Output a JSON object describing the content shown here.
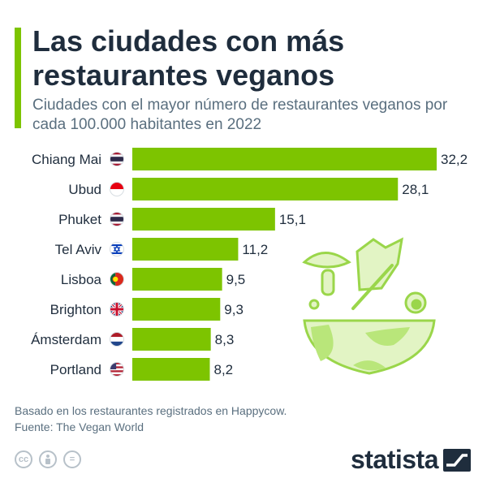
{
  "header": {
    "title": "Las ciudades con más restaurantes veganos",
    "subtitle": "Ciudades con el mayor número de restaurantes veganos por cada 100.000 habitantes en 2022"
  },
  "colors": {
    "accent": "#7dc400",
    "bar": "#7dc400",
    "text": "#1f2d3d",
    "muted": "#5a6f7f"
  },
  "chart_data": {
    "type": "bar",
    "orientation": "horizontal",
    "title": "Las ciudades con más restaurantes veganos",
    "subtitle": "Ciudades con el mayor número de restaurantes veganos por cada 100.000 habitantes en 2022",
    "categories": [
      "Chiang Mai",
      "Ubud",
      "Phuket",
      "Tel Aviv",
      "Lisboa",
      "Brighton",
      "Ámsterdam",
      "Portland"
    ],
    "values": [
      32.2,
      28.1,
      15.1,
      11.2,
      9.5,
      9.3,
      8.3,
      8.2
    ],
    "value_labels": [
      "32,2",
      "28,1",
      "15,1",
      "11,2",
      "9,5",
      "9,3",
      "8,3",
      "8,2"
    ],
    "flags": [
      "thailand-flag",
      "indonesia-flag",
      "thailand-flag",
      "israel-flag",
      "portugal-flag",
      "uk-flag",
      "netherlands-flag",
      "usa-flag"
    ],
    "xlim": [
      0,
      32.2
    ],
    "grid": false,
    "legend": "none"
  },
  "footer": {
    "note": "Basado en los restaurantes registrados en Happycow.",
    "source": "Fuente: The Vegan World",
    "license_icons": [
      "cc",
      "by",
      "="
    ],
    "brand": "statista"
  }
}
